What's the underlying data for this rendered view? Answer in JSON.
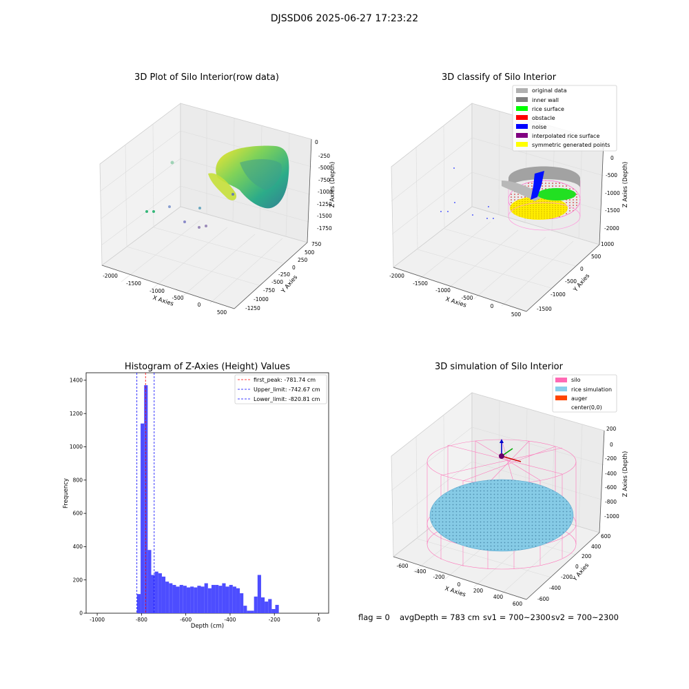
{
  "figure": {
    "suptitle": "DJSSD06 2025-06-27 17:23:22",
    "status": {
      "flag": "flag = 0",
      "avg_depth": "avgDepth = 783 cm",
      "sv1": "sv1 = 700~2300",
      "sv2": "sv2 = 700~2300"
    }
  },
  "chart_data": [
    {
      "type": "scatter",
      "dims": 3,
      "title": "3D Plot of Silo Interior(row data)",
      "xlabel": "X Axies",
      "ylabel": "Y Axies",
      "zlabel": "Z Axies (Depth)",
      "x_ticks": [
        -2000,
        -1500,
        -1000,
        -500,
        0,
        500
      ],
      "y_ticks": [
        750,
        500,
        250,
        0,
        -250,
        -500,
        -750,
        -1000,
        -1250
      ],
      "z_ticks": [
        0,
        -250,
        -500,
        -750,
        -1000,
        -1250,
        -1500,
        -1750
      ],
      "colormap": "viridis",
      "grid": true
    },
    {
      "type": "scatter",
      "dims": 3,
      "title": "3D classify of Silo Interior",
      "xlabel": "X Axies",
      "ylabel": "Y Axies",
      "zlabel": "Z Axies (Depth)",
      "x_ticks": [
        -2000,
        -1500,
        -1000,
        -500,
        0,
        500
      ],
      "y_ticks": [
        1000,
        500,
        0,
        -500,
        -1000,
        -1500
      ],
      "z_ticks": [
        0,
        -500,
        -1000,
        -1500,
        -2000
      ],
      "legend_position": "top-right",
      "series": [
        {
          "name": "original data",
          "color": "#b0b0b0"
        },
        {
          "name": "inner wall",
          "color": "#808080"
        },
        {
          "name": "rice surface",
          "color": "#00ff00"
        },
        {
          "name": "obstacle",
          "color": "#ff0000"
        },
        {
          "name": "noise",
          "color": "#0000ff"
        },
        {
          "name": "interpolated rice surface",
          "color": "#800080"
        },
        {
          "name": "symmetric generated points",
          "color": "#ffff00"
        }
      ],
      "grid": true
    },
    {
      "type": "bar",
      "title": "Histogram of Z-Axies (Height) Values",
      "xlabel": "Depth (cm)",
      "ylabel": "Frequency",
      "xlim": [
        -1050,
        45
      ],
      "ylim": [
        0,
        1445
      ],
      "x_ticks": [
        -1000,
        -800,
        -600,
        -400,
        -200,
        0
      ],
      "y_ticks": [
        0,
        200,
        400,
        600,
        800,
        1000,
        1200,
        1400
      ],
      "bin_start": -820,
      "bin_width": 16,
      "values": [
        115,
        1140,
        1370,
        380,
        230,
        250,
        240,
        220,
        190,
        180,
        170,
        160,
        170,
        165,
        155,
        160,
        155,
        165,
        160,
        180,
        150,
        170,
        170,
        165,
        180,
        160,
        170,
        160,
        150,
        120,
        45,
        15,
        15,
        100,
        230,
        95,
        70,
        85,
        25,
        50
      ],
      "bar_color": "#4d4dff",
      "legend_position": "top-right",
      "vlines": [
        {
          "label": "first_peak: -781.74 cm",
          "x": -781.74,
          "color": "#ff0000"
        },
        {
          "label": "Upper_limit: -742.67 cm",
          "x": -742.67,
          "color": "#0000ff"
        },
        {
          "label": "Lower_limit: -820.81 cm",
          "x": -820.81,
          "color": "#0000ff"
        }
      ]
    },
    {
      "type": "scatter",
      "dims": 3,
      "title": "3D simulation of Silo Interior",
      "xlabel": "X Axies",
      "ylabel": "Y Axies",
      "zlabel": "Z Axies (Depth)",
      "x_ticks": [
        -600,
        -400,
        -200,
        0,
        200,
        400,
        600
      ],
      "y_ticks": [
        600,
        400,
        200,
        0,
        -200,
        -400,
        -600
      ],
      "z_ticks": [
        200,
        0,
        -200,
        -400,
        -600,
        -800,
        -1000
      ],
      "legend_position": "top-right",
      "series": [
        {
          "name": "silo",
          "color": "#ff69b4"
        },
        {
          "name": "rice simulation",
          "color": "#87ceeb"
        },
        {
          "name": "auger",
          "color": "#ff4500"
        },
        {
          "name": "center(0,0)",
          "color": "#ffffff"
        }
      ],
      "grid": true
    }
  ]
}
